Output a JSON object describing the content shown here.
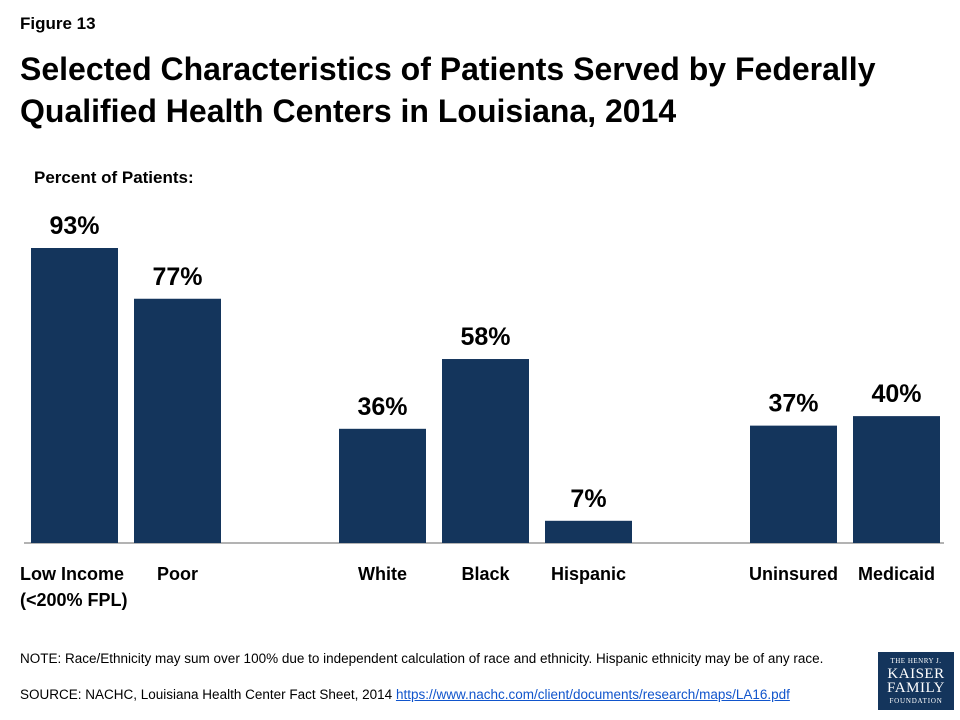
{
  "figure_label": "Figure 13",
  "title": "Selected Characteristics of Patients Served by Federally Qualified Health Centers in Louisiana, 2014",
  "chart_data": {
    "type": "bar",
    "ylabel": "Percent of Patients:",
    "xlabel": "",
    "ylim": [
      0,
      100
    ],
    "grid": false,
    "legend": "none",
    "bar_color": "#14355c",
    "categories": [
      "Low Income (<200% FPL)",
      "Poor",
      "White",
      "Black",
      "Hispanic",
      "Uninsured",
      "Medicaid"
    ],
    "category_lines": [
      [
        "Low Income",
        "(<200% FPL)"
      ],
      [
        "Poor"
      ],
      [
        "White"
      ],
      [
        "Black"
      ],
      [
        "Hispanic"
      ],
      [
        "Uninsured"
      ],
      [
        "Medicaid"
      ]
    ],
    "groups": [
      [
        0,
        1
      ],
      [
        2,
        3,
        4
      ],
      [
        5,
        6
      ]
    ],
    "values": [
      93,
      77,
      36,
      58,
      7,
      37,
      40
    ],
    "data_labels": [
      "93%",
      "77%",
      "36%",
      "58%",
      "7%",
      "37%",
      "40%"
    ]
  },
  "note": "NOTE: Race/Ethnicity may sum over 100% due to independent calculation of race and ethnicity. Hispanic ethnicity may be of any race.",
  "source_prefix": "SOURCE: NACHC, Louisiana Health Center Fact Sheet, 2014 ",
  "source_link": "https://www.nachc.com/client/documents/research/maps/LA16.pdf",
  "logo": {
    "line1": "THE HENRY J.",
    "line2": "KAISER",
    "line3": "FAMILY",
    "line4": "FOUNDATION"
  }
}
